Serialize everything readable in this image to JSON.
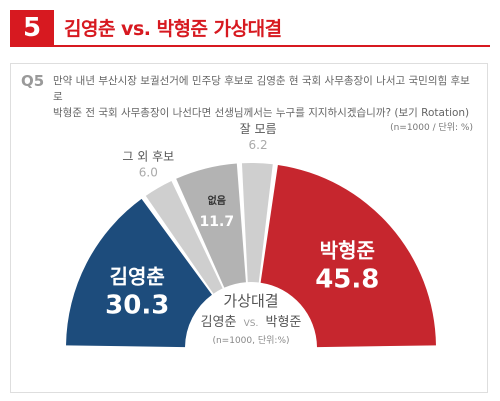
{
  "header": {
    "number": "5",
    "title": "김영춘 vs. 박형준 가상대결"
  },
  "question": {
    "label": "Q5",
    "text_line1": "만약 내년 부산시장 보궐선거에 민주당 후보로 김영춘 현 국회 사무총장이 나서고 국민의힘 후보로",
    "text_line2": "박형준 전 국회 사무총장이 나선다면 선생님께서는 누구를 지지하시겠습니까? (보기 Rotation)",
    "note": "(n=1000 / 단위: %)"
  },
  "center": {
    "line1": "가상대결",
    "name1": "김영춘",
    "vs": "VS.",
    "name2": "박형준",
    "note": "(n=1000, 단위:%)"
  },
  "chart_data": {
    "type": "pie",
    "title": "김영춘 vs. 박형준 가상대결",
    "unit": "%",
    "categories": [
      "김영춘",
      "그 외 후보",
      "없음",
      "잘 모름",
      "박형준"
    ],
    "values": [
      30.3,
      6.0,
      11.7,
      6.2,
      45.8
    ],
    "colors": [
      "#1d4c7c",
      "#cfcfcf",
      "#b3b3b3",
      "#cfcfcf",
      "#c6262e"
    ]
  }
}
